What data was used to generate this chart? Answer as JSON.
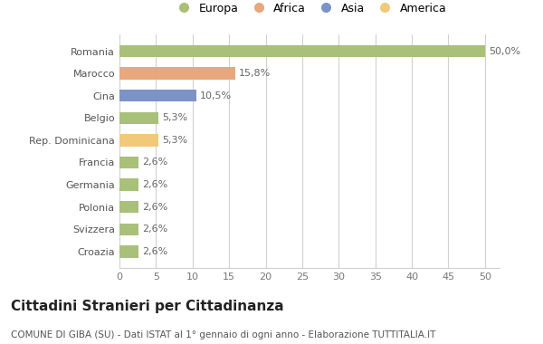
{
  "categories": [
    "Romania",
    "Marocco",
    "Cina",
    "Belgio",
    "Rep. Dominicana",
    "Francia",
    "Germania",
    "Polonia",
    "Svizzera",
    "Croazia"
  ],
  "values": [
    50.0,
    15.8,
    10.5,
    5.3,
    5.3,
    2.6,
    2.6,
    2.6,
    2.6,
    2.6
  ],
  "labels": [
    "50,0%",
    "15,8%",
    "10,5%",
    "5,3%",
    "5,3%",
    "2,6%",
    "2,6%",
    "2,6%",
    "2,6%",
    "2,6%"
  ],
  "colors": [
    "#a8c07a",
    "#e8a87c",
    "#7b93c7",
    "#a8c07a",
    "#f0c97a",
    "#a8c07a",
    "#a8c07a",
    "#a8c07a",
    "#a8c07a",
    "#a8c07a"
  ],
  "legend_labels": [
    "Europa",
    "Africa",
    "Asia",
    "America"
  ],
  "legend_colors": [
    "#a8c07a",
    "#e8a87c",
    "#7b93c7",
    "#f0c97a"
  ],
  "title": "Cittadini Stranieri per Cittadinanza",
  "subtitle": "COMUNE DI GIBA (SU) - Dati ISTAT al 1° gennaio di ogni anno - Elaborazione TUTTITALIA.IT",
  "xlim": [
    0,
    52
  ],
  "xticks": [
    0,
    5,
    10,
    15,
    20,
    25,
    30,
    35,
    40,
    45,
    50
  ],
  "background_color": "#ffffff",
  "grid_color": "#d0d0d0",
  "bar_height": 0.55,
  "title_fontsize": 11,
  "subtitle_fontsize": 7.5,
  "label_fontsize": 8,
  "tick_fontsize": 8,
  "legend_fontsize": 9
}
